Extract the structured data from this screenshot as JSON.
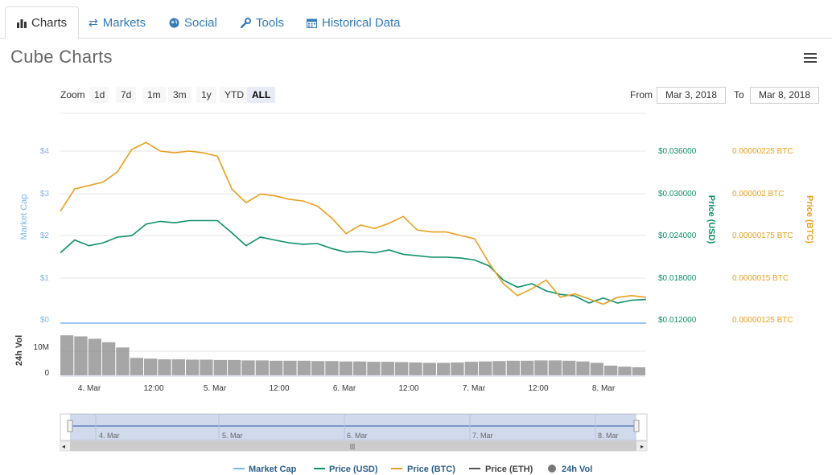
{
  "tabs": [
    {
      "label": "Charts",
      "icon": "bar-chart-icon"
    },
    {
      "label": "Markets",
      "icon": "exchange-arrows-icon"
    },
    {
      "label": "Social",
      "icon": "globe-icon"
    },
    {
      "label": "Tools",
      "icon": "wrench-icon"
    },
    {
      "label": "Historical Data",
      "icon": "calendar-icon"
    }
  ],
  "title": "Cube Charts",
  "zoom": {
    "label": "Zoom",
    "options": [
      "1d",
      "7d",
      "1m",
      "3m",
      "1y",
      "YTD",
      "ALL"
    ],
    "selected": "ALL"
  },
  "range": {
    "from_label": "From",
    "from_value": "Mar 3, 2018",
    "to_label": "To",
    "to_value": "Mar 8, 2018"
  },
  "colors": {
    "market_cap": "#7cb5ec",
    "price_usd": "#0e8f6c",
    "price_btc": "#e8a020",
    "price_eth": "#555555",
    "vol": "#888888"
  },
  "chart_data": {
    "type": "line",
    "x_ticks": [
      "4. Mar",
      "12:00",
      "5. Mar",
      "12:00",
      "6. Mar",
      "12:00",
      "7. Mar",
      "12:00",
      "8. Mar"
    ],
    "navigator_ticks": [
      "4. Mar",
      "5. Mar",
      "6. Mar",
      "7. Mar",
      "8. Mar"
    ],
    "axes": {
      "market_cap": {
        "label": "Market Cap",
        "ticks": [
          "$4",
          "$3",
          "$2",
          "$1",
          "$0"
        ],
        "ylim": [
          0,
          4
        ]
      },
      "price_usd": {
        "label": "Price (USD)",
        "ticks": [
          "$0.036000",
          "$0.030000",
          "$0.024000",
          "$0.018000",
          "$0.012000"
        ],
        "ylim": [
          0.012,
          0.036
        ]
      },
      "price_btc": {
        "label": "Price (BTC)",
        "ticks": [
          "0.00000225 BTC",
          "0.000002 BTC",
          "0.00000175 BTC",
          "0.0000015 BTC",
          "0.00000125 BTC"
        ],
        "ylim": [
          1.25e-06,
          2.25e-06
        ]
      },
      "volume": {
        "label": "24h Vol",
        "ticks": [
          "10M",
          "0"
        ],
        "ylim": [
          0,
          10
        ]
      }
    },
    "series": [
      {
        "name": "Market Cap",
        "values": [
          0,
          0,
          0,
          0,
          0,
          0,
          0,
          0,
          0,
          0,
          0,
          0,
          0,
          0,
          0,
          0,
          0,
          0,
          0,
          0,
          0,
          0,
          0,
          0,
          0,
          0,
          0,
          0,
          0,
          0,
          0,
          0,
          0,
          0,
          0,
          0,
          0,
          0,
          0,
          0,
          0,
          0
        ]
      },
      {
        "name": "Price (USD)",
        "values": [
          0.0218,
          0.0236,
          0.0228,
          0.0232,
          0.024,
          0.0242,
          0.0258,
          0.0262,
          0.026,
          0.0263,
          0.0263,
          0.0263,
          0.0246,
          0.0228,
          0.024,
          0.0236,
          0.0232,
          0.023,
          0.0231,
          0.0224,
          0.0219,
          0.022,
          0.0218,
          0.0222,
          0.0216,
          0.0214,
          0.0212,
          0.0212,
          0.0211,
          0.0208,
          0.02,
          0.018,
          0.017,
          0.0175,
          0.0165,
          0.016,
          0.0158,
          0.0148,
          0.0155,
          0.0148,
          0.0152,
          0.0153
        ]
      },
      {
        "name": "Price (BTC)",
        "values": [
          1.9e-06,
          2.03e-06,
          2.05e-06,
          2.07e-06,
          2.13e-06,
          2.26e-06,
          2.3e-06,
          2.25e-06,
          2.24e-06,
          2.25e-06,
          2.24e-06,
          2.22e-06,
          2.03e-06,
          1.95e-06,
          2e-06,
          1.99e-06,
          1.97e-06,
          1.96e-06,
          1.93e-06,
          1.86e-06,
          1.77e-06,
          1.82e-06,
          1.8e-06,
          1.83e-06,
          1.87e-06,
          1.79e-06,
          1.78e-06,
          1.78e-06,
          1.76e-06,
          1.74e-06,
          1.6e-06,
          1.48e-06,
          1.41e-06,
          1.45e-06,
          1.5e-06,
          1.4e-06,
          1.42e-06,
          1.39e-06,
          1.36e-06,
          1.4e-06,
          1.41e-06,
          1.4e-06
        ]
      },
      {
        "name": "Price (ETH)",
        "values": []
      }
    ],
    "volume": [
      11.5,
      11.2,
      10.5,
      9.5,
      8.0,
      5.0,
      4.8,
      4.6,
      4.6,
      4.5,
      4.5,
      4.4,
      4.4,
      4.3,
      4.3,
      4.2,
      4.2,
      4.2,
      4.1,
      4.1,
      4.0,
      4.0,
      3.9,
      3.9,
      3.8,
      3.7,
      3.6,
      3.6,
      3.7,
      3.9,
      4.0,
      4.1,
      4.2,
      4.2,
      4.3,
      4.3,
      4.2,
      4.0,
      3.6,
      2.8,
      2.5,
      2.3
    ],
    "legend": [
      {
        "name": "Market Cap",
        "type": "line"
      },
      {
        "name": "Price (USD)",
        "type": "line"
      },
      {
        "name": "Price (BTC)",
        "type": "line"
      },
      {
        "name": "Price (ETH)",
        "type": "line"
      },
      {
        "name": "24h Vol",
        "type": "dot"
      }
    ],
    "legend_position": "bottom",
    "grid": true
  }
}
